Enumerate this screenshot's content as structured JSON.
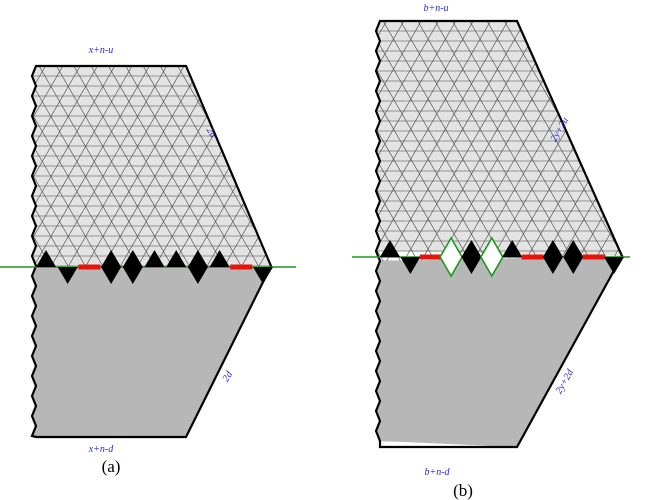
{
  "colors": {
    "upper_fill": "#e3e3e3",
    "lower_fill": "#b7b7b7",
    "grid_line": "#444444",
    "outline": "#000000",
    "axis_line": "#1a9a1a",
    "red_bar": "#e8140a",
    "black_triangle": "#000000",
    "hollow_outline": "#1a9a1a",
    "label": "#2a2ad6"
  },
  "panels": [
    {
      "caption": "(a)",
      "labels": {
        "top": "x+n-u",
        "upper_right": "2u",
        "lower_right": "2d",
        "bottom": "x+n-d"
      },
      "markers": [
        {
          "type": "up"
        },
        {
          "type": "down"
        },
        {
          "type": "red"
        },
        {
          "type": "diamond"
        },
        {
          "type": "diamond"
        },
        {
          "type": "up"
        },
        {
          "type": "up"
        },
        {
          "type": "diamond"
        },
        {
          "type": "up"
        },
        {
          "type": "red"
        },
        {
          "type": "down"
        }
      ]
    },
    {
      "caption": "(b)",
      "labels": {
        "top": "b+n-u",
        "upper_right": "2y+2u",
        "lower_right": "2y+2d",
        "bottom": "b+n-d"
      },
      "markers": [
        {
          "type": "up"
        },
        {
          "type": "down"
        },
        {
          "type": "red"
        },
        {
          "type": "hollow"
        },
        {
          "type": "diamond"
        },
        {
          "type": "hollow"
        },
        {
          "type": "up"
        },
        {
          "type": "red"
        },
        {
          "type": "diamond"
        },
        {
          "type": "diamond"
        },
        {
          "type": "red"
        },
        {
          "type": "down"
        }
      ]
    }
  ]
}
